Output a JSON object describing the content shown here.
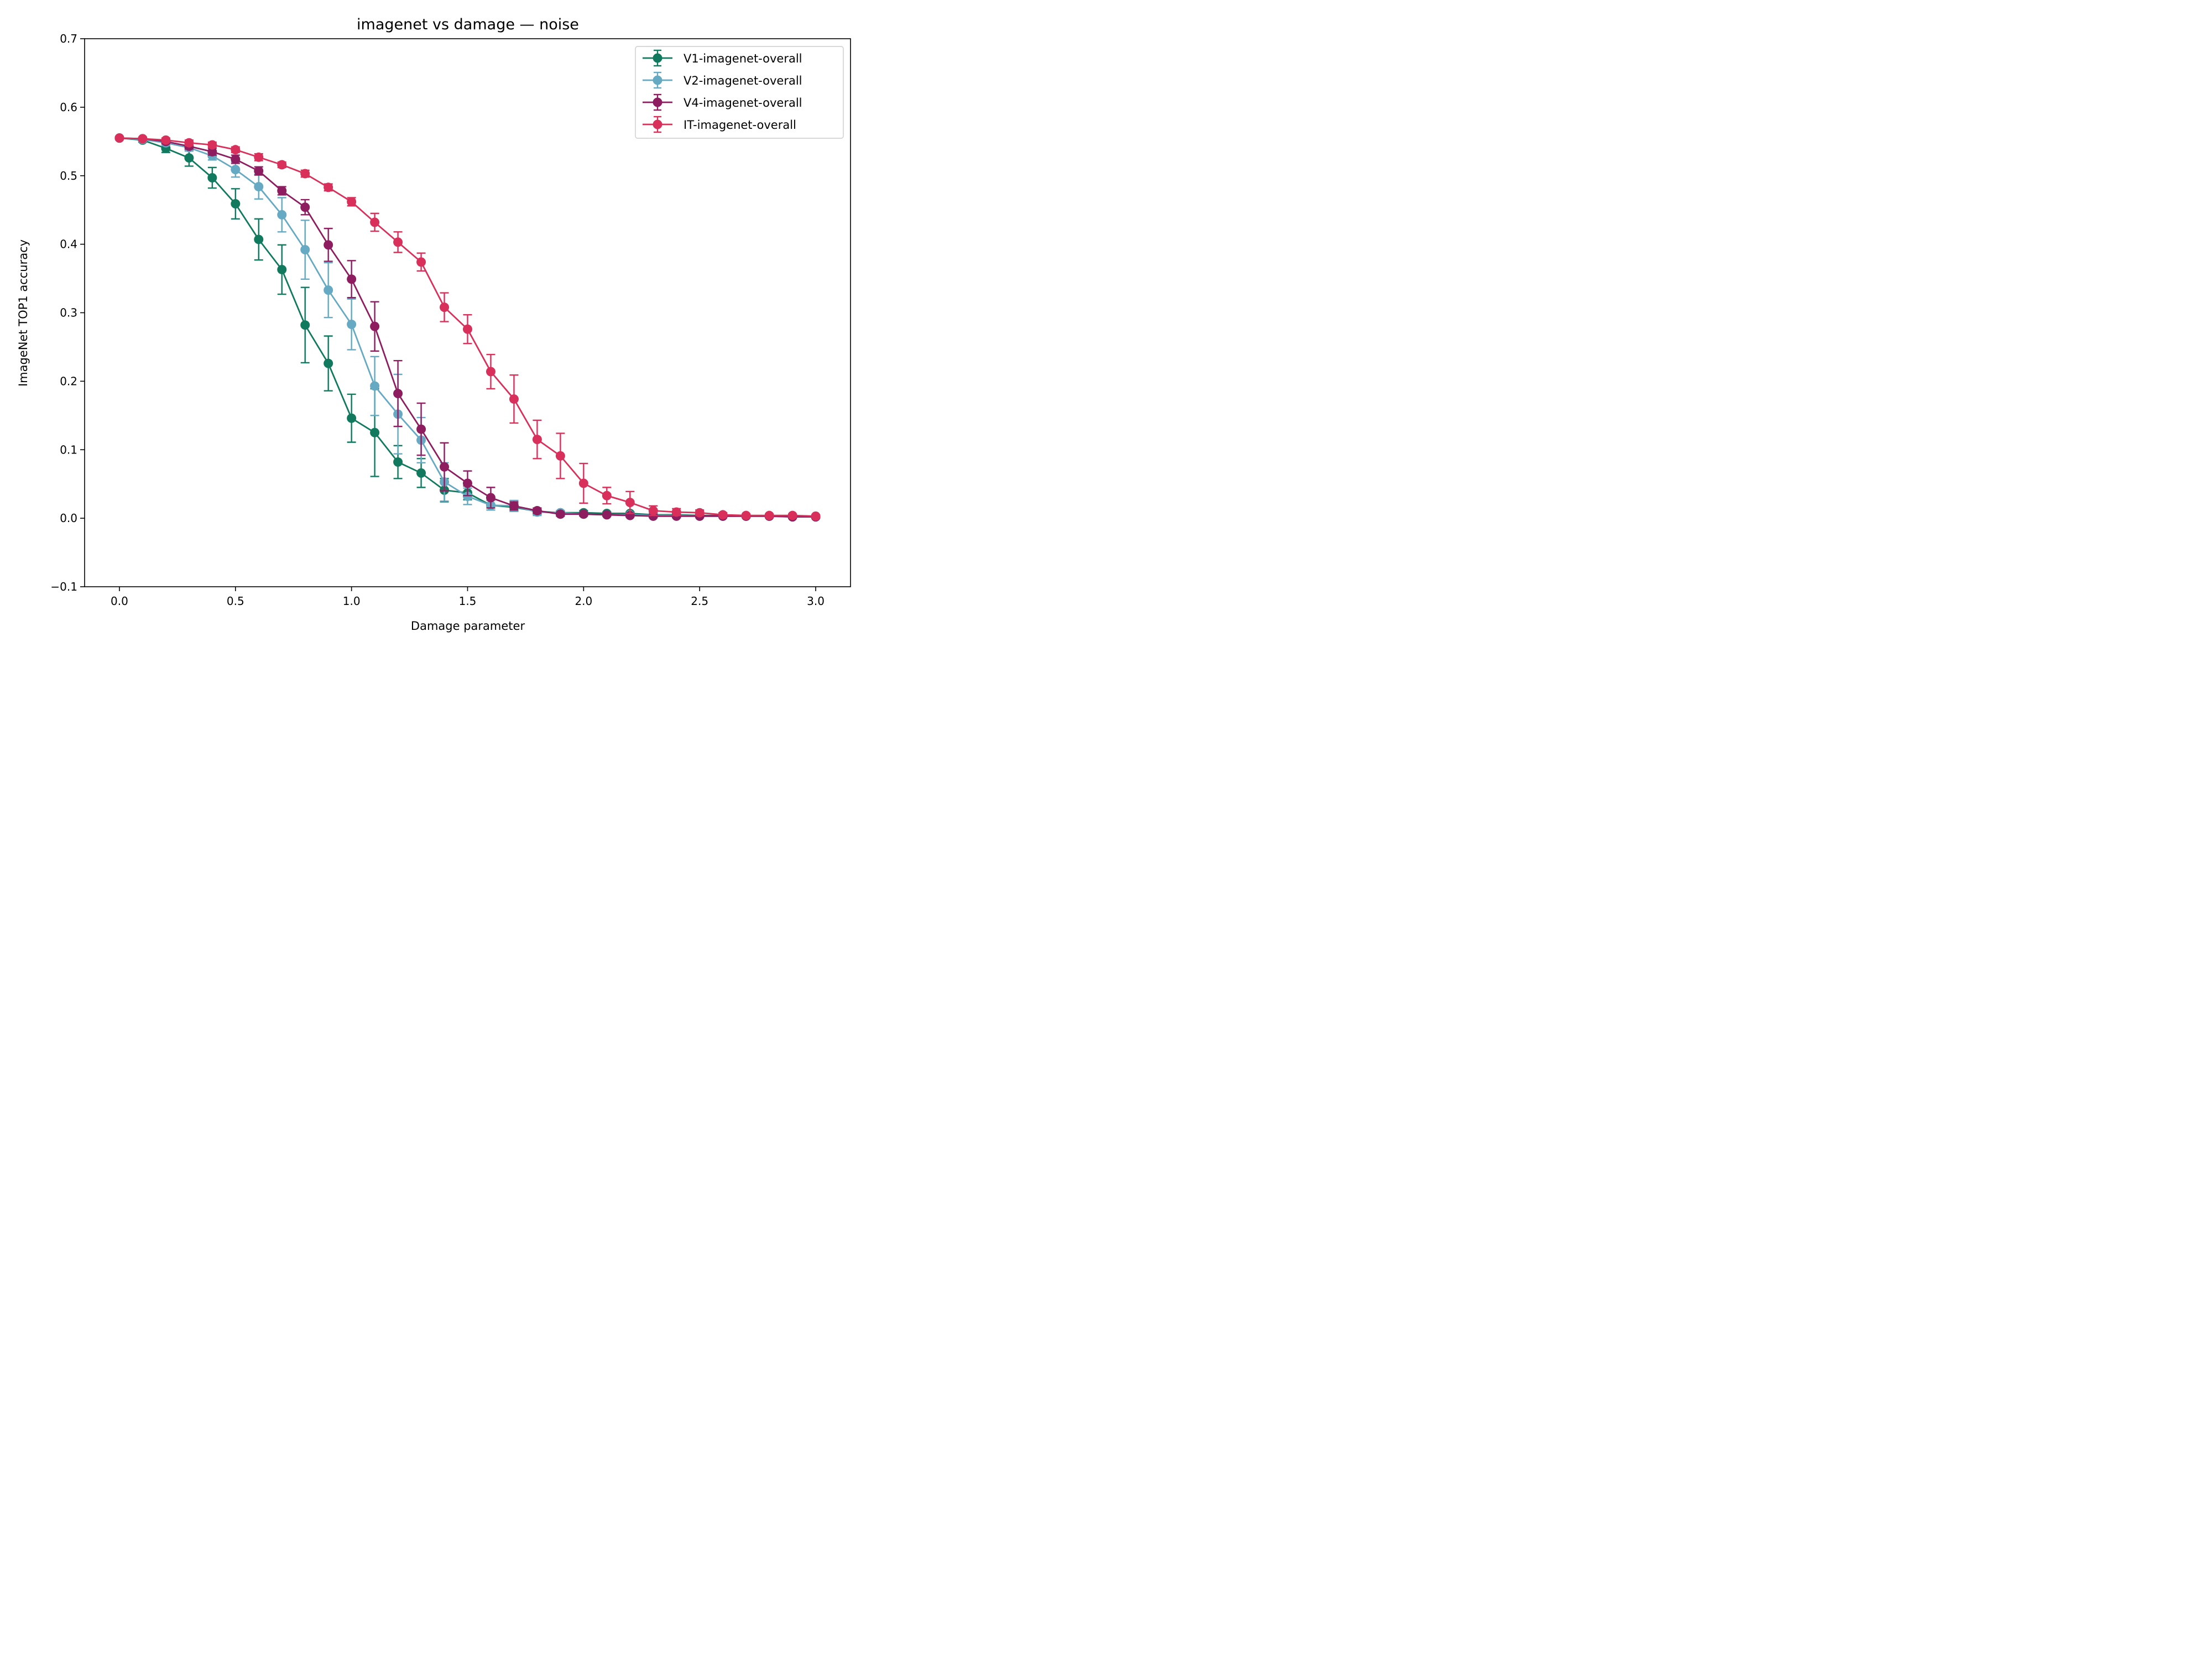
{
  "chart_data": {
    "type": "line",
    "title": "imagenet vs damage — noise",
    "xlabel": "Damage parameter",
    "ylabel": "ImageNet TOP1 accuracy",
    "xlim": [
      -0.15,
      3.15
    ],
    "ylim": [
      -0.1,
      0.7
    ],
    "xticks": [
      0.0,
      0.5,
      1.0,
      1.5,
      2.0,
      2.5,
      3.0
    ],
    "xtick_labels": [
      "0.0",
      "0.5",
      "1.0",
      "1.5",
      "2.0",
      "2.5",
      "3.0"
    ],
    "yticks": [
      -0.1,
      0.0,
      0.1,
      0.2,
      0.3,
      0.4,
      0.5,
      0.6,
      0.7
    ],
    "ytick_labels": [
      "−0.1",
      "0.0",
      "0.1",
      "0.2",
      "0.3",
      "0.4",
      "0.5",
      "0.6",
      "0.7"
    ],
    "grid": false,
    "legend_position": "top-right",
    "error_bars": true,
    "x": [
      0.0,
      0.1,
      0.2,
      0.3,
      0.4,
      0.5,
      0.6,
      0.7,
      0.8,
      0.9,
      1.0,
      1.1,
      1.2,
      1.3,
      1.4,
      1.5,
      1.6,
      1.7,
      1.8,
      1.9,
      2.0,
      2.1,
      2.2,
      2.3,
      2.4,
      2.5,
      2.6,
      2.7,
      2.8,
      2.9,
      3.0
    ],
    "series": [
      {
        "name": "V1-imagenet-overall",
        "color": "#117a5e",
        "values": [
          0.555,
          0.552,
          0.54,
          0.526,
          0.497,
          0.459,
          0.407,
          0.363,
          0.282,
          0.226,
          0.146,
          0.125,
          0.082,
          0.066,
          0.041,
          0.037,
          0.019,
          0.016,
          0.01,
          0.008,
          0.008,
          0.007,
          0.007,
          0.005,
          0.005,
          0.004,
          0.004,
          0.003,
          0.003,
          0.003,
          0.002
        ],
        "errors": [
          0.001,
          0.003,
          0.006,
          0.012,
          0.015,
          0.022,
          0.03,
          0.036,
          0.055,
          0.04,
          0.035,
          0.064,
          0.024,
          0.021,
          0.017,
          0.01,
          0.007,
          0.006,
          0.004,
          0.003,
          0.003,
          0.002,
          0.002,
          0.002,
          0.002,
          0.001,
          0.001,
          0.001,
          0.001,
          0.001,
          0.001
        ]
      },
      {
        "name": "V2-imagenet-overall",
        "color": "#65a9c2",
        "values": [
          0.555,
          0.553,
          0.548,
          0.541,
          0.529,
          0.509,
          0.484,
          0.443,
          0.392,
          0.333,
          0.283,
          0.193,
          0.152,
          0.114,
          0.053,
          0.032,
          0.019,
          0.018,
          0.009,
          0.008,
          0.006,
          0.005,
          0.005,
          0.004,
          0.004,
          0.003,
          0.003,
          0.003,
          0.003,
          0.002,
          0.002
        ],
        "errors": [
          0.001,
          0.003,
          0.004,
          0.005,
          0.006,
          0.011,
          0.018,
          0.025,
          0.043,
          0.04,
          0.037,
          0.043,
          0.058,
          0.033,
          0.028,
          0.012,
          0.007,
          0.008,
          0.005,
          0.003,
          0.003,
          0.002,
          0.002,
          0.002,
          0.002,
          0.001,
          0.001,
          0.001,
          0.001,
          0.001,
          0.001
        ]
      },
      {
        "name": "V4-imagenet-overall",
        "color": "#8e1d60",
        "values": [
          0.555,
          0.554,
          0.55,
          0.543,
          0.535,
          0.524,
          0.507,
          0.478,
          0.454,
          0.399,
          0.349,
          0.28,
          0.182,
          0.13,
          0.075,
          0.051,
          0.03,
          0.018,
          0.011,
          0.006,
          0.006,
          0.005,
          0.004,
          0.003,
          0.003,
          0.003,
          0.003,
          0.003,
          0.003,
          0.002,
          0.002
        ],
        "errors": [
          0.001,
          0.002,
          0.003,
          0.004,
          0.005,
          0.006,
          0.006,
          0.006,
          0.011,
          0.024,
          0.027,
          0.036,
          0.048,
          0.038,
          0.035,
          0.018,
          0.015,
          0.006,
          0.004,
          0.003,
          0.002,
          0.002,
          0.002,
          0.002,
          0.002,
          0.001,
          0.001,
          0.001,
          0.001,
          0.001,
          0.001
        ]
      },
      {
        "name": "IT-imagenet-overall",
        "color": "#d8305a",
        "values": [
          0.555,
          0.554,
          0.552,
          0.548,
          0.545,
          0.538,
          0.527,
          0.516,
          0.503,
          0.483,
          0.462,
          0.432,
          0.403,
          0.374,
          0.308,
          0.276,
          0.214,
          0.174,
          0.115,
          0.091,
          0.051,
          0.033,
          0.023,
          0.011,
          0.009,
          0.008,
          0.005,
          0.004,
          0.004,
          0.004,
          0.003
        ],
        "errors": [
          0.001,
          0.002,
          0.003,
          0.004,
          0.004,
          0.004,
          0.005,
          0.004,
          0.005,
          0.005,
          0.006,
          0.013,
          0.015,
          0.013,
          0.021,
          0.021,
          0.025,
          0.035,
          0.028,
          0.033,
          0.029,
          0.012,
          0.016,
          0.007,
          0.005,
          0.004,
          0.003,
          0.002,
          0.002,
          0.002,
          0.002
        ]
      }
    ]
  }
}
